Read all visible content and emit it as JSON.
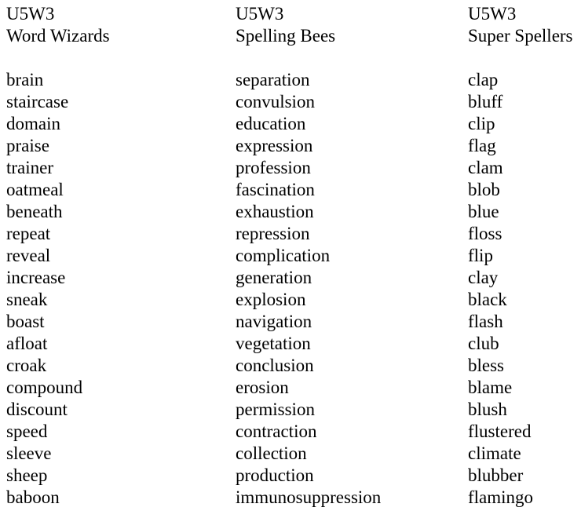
{
  "page": {
    "background": "#ffffff",
    "text_color": "#000000"
  },
  "columns": [
    {
      "unit": "U5W3",
      "group": "Word Wizards",
      "words": [
        "brain",
        "staircase",
        "domain",
        "praise",
        "trainer",
        "oatmeal",
        "beneath",
        "repeat",
        "reveal",
        "increase",
        "sneak",
        "boast",
        "afloat",
        "croak",
        "compound",
        "discount",
        "speed",
        "sleeve",
        "sheep",
        "baboon"
      ]
    },
    {
      "unit": "U5W3",
      "group": "Spelling Bees",
      "words": [
        "separation",
        "convulsion",
        "education",
        "expression",
        "profession",
        "fascination",
        "exhaustion",
        "repression",
        "complication",
        "generation",
        "explosion",
        "navigation",
        "vegetation",
        "conclusion",
        "erosion",
        "permission",
        "contraction",
        "collection",
        "production",
        "immunosuppression"
      ]
    },
    {
      "unit": "U5W3",
      "group": "Super Spellers",
      "words": [
        "clap",
        "bluff",
        "clip",
        "flag",
        "clam",
        "blob",
        "blue",
        "floss",
        "flip",
        "clay",
        "black",
        "flash",
        "club",
        "bless",
        "blame",
        "blush",
        "flustered",
        "climate",
        "blubber",
        "flamingo"
      ]
    }
  ]
}
